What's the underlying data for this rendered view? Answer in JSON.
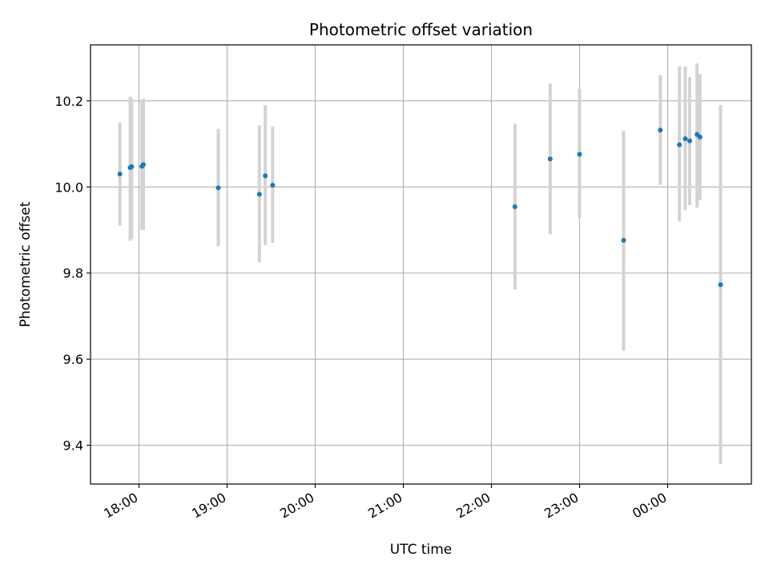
{
  "chart_data": {
    "type": "scatter",
    "title": "Photometric offset variation",
    "xlabel": "UTC time",
    "ylabel": "Photometric offset",
    "x_axis_type": "time",
    "x_ticks": [
      "18:00",
      "19:00",
      "20:00",
      "21:00",
      "22:00",
      "23:00",
      "00:00"
    ],
    "y_ticks": [
      "9.4",
      "9.6",
      "9.8",
      "10.0",
      "10.2"
    ],
    "xlim": [
      "17:27",
      "00:57"
    ],
    "ylim": [
      9.31,
      10.33
    ],
    "grid": true,
    "point_color": "#1f77b4",
    "errorbar_color": "#d3d3d3",
    "points": [
      {
        "t": "17:47",
        "y": 10.03,
        "err_low": 9.91,
        "err_high": 10.15
      },
      {
        "t": "17:54",
        "y": 10.045,
        "err_low": 9.875,
        "err_high": 10.21
      },
      {
        "t": "17:55",
        "y": 10.047,
        "err_low": 9.88,
        "err_high": 10.205
      },
      {
        "t": "18:02",
        "y": 10.048,
        "err_low": 9.9,
        "err_high": 10.2
      },
      {
        "t": "18:03",
        "y": 10.052,
        "err_low": 9.9,
        "err_high": 10.205
      },
      {
        "t": "18:54",
        "y": 9.998,
        "err_low": 9.862,
        "err_high": 10.135
      },
      {
        "t": "19:22",
        "y": 9.983,
        "err_low": 9.825,
        "err_high": 10.143
      },
      {
        "t": "19:26",
        "y": 10.026,
        "err_low": 9.865,
        "err_high": 10.19
      },
      {
        "t": "19:31",
        "y": 10.004,
        "err_low": 9.87,
        "err_high": 10.14
      },
      {
        "t": "22:16",
        "y": 9.954,
        "err_low": 9.762,
        "err_high": 10.147
      },
      {
        "t": "22:40",
        "y": 10.065,
        "err_low": 9.89,
        "err_high": 10.24
      },
      {
        "t": "23:00",
        "y": 10.076,
        "err_low": 9.928,
        "err_high": 10.228
      },
      {
        "t": "23:30",
        "y": 9.876,
        "err_low": 9.62,
        "err_high": 10.13
      },
      {
        "t": "23:55",
        "y": 10.132,
        "err_low": 10.005,
        "err_high": 10.26
      },
      {
        "t": "00:08",
        "y": 10.098,
        "err_low": 9.92,
        "err_high": 10.28
      },
      {
        "t": "00:12",
        "y": 10.112,
        "err_low": 9.946,
        "err_high": 10.28
      },
      {
        "t": "00:15",
        "y": 10.107,
        "err_low": 9.958,
        "err_high": 10.255
      },
      {
        "t": "00:20",
        "y": 10.122,
        "err_low": 9.952,
        "err_high": 10.287
      },
      {
        "t": "00:22",
        "y": 10.116,
        "err_low": 9.97,
        "err_high": 10.262
      },
      {
        "t": "00:36",
        "y": 9.773,
        "err_low": 9.357,
        "err_high": 10.19
      }
    ]
  }
}
